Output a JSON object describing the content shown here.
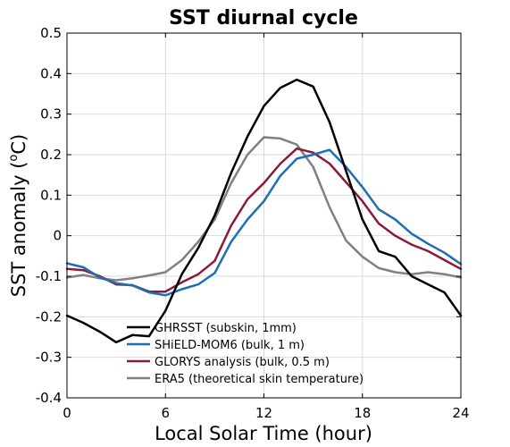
{
  "chart_data": {
    "type": "line",
    "title": "SST diurnal cycle",
    "xlabel": "Local Solar Time (hour)",
    "ylabel_main": "SST anomaly (",
    "ylabel_sup": "o",
    "ylabel_tail": "C)",
    "xlim": [
      0,
      24
    ],
    "ylim": [
      -0.4,
      0.5
    ],
    "xticks": [
      0,
      6,
      12,
      18,
      24
    ],
    "xtick_labels": [
      "0",
      "6",
      "12",
      "18",
      "24"
    ],
    "yticks": [
      -0.4,
      -0.3,
      -0.2,
      -0.1,
      0,
      0.1,
      0.2,
      0.3,
      0.4,
      0.5
    ],
    "ytick_labels": [
      "-0.4",
      "-0.3",
      "-0.2",
      "-0.1",
      "0",
      "0.1",
      "0.2",
      "0.3",
      "0.4",
      "0.5"
    ],
    "grid": true,
    "legend_position": "bottom-left",
    "x": [
      0,
      1,
      2,
      3,
      4,
      5,
      6,
      7,
      8,
      9,
      10,
      11,
      12,
      13,
      14,
      15,
      16,
      17,
      18,
      19,
      20,
      21,
      22,
      23,
      24
    ],
    "series": [
      {
        "name": "GHRSST (subskin, 1mm)",
        "color": "#000000",
        "values": [
          -0.197,
          -0.215,
          -0.237,
          -0.263,
          -0.245,
          -0.248,
          -0.185,
          -0.095,
          -0.03,
          0.05,
          0.155,
          0.245,
          0.32,
          0.365,
          0.385,
          0.368,
          0.28,
          0.16,
          0.04,
          -0.038,
          -0.052,
          -0.1,
          -0.12,
          -0.14,
          -0.197
        ]
      },
      {
        "name": "SHiELD-MOM6 (bulk, 1 m)",
        "color": "#1f6eb0",
        "values": [
          -0.068,
          -0.078,
          -0.103,
          -0.117,
          -0.123,
          -0.14,
          -0.147,
          -0.132,
          -0.12,
          -0.092,
          -0.015,
          0.04,
          0.085,
          0.148,
          0.19,
          0.2,
          0.212,
          0.17,
          0.12,
          0.065,
          0.04,
          0.005,
          -0.02,
          -0.042,
          -0.07
        ]
      },
      {
        "name": "GLORYS analysis (bulk, 0.5 m)",
        "color": "#8b1a3a",
        "values": [
          -0.082,
          -0.085,
          -0.1,
          -0.12,
          -0.122,
          -0.138,
          -0.138,
          -0.115,
          -0.095,
          -0.062,
          0.025,
          0.09,
          0.13,
          0.178,
          0.215,
          0.205,
          0.178,
          0.132,
          0.085,
          0.03,
          0.0,
          -0.022,
          -0.038,
          -0.06,
          -0.082
        ]
      },
      {
        "name": "ERA5 (theoretical skin temperature)",
        "color": "#808080",
        "values": [
          -0.103,
          -0.097,
          -0.105,
          -0.11,
          -0.105,
          -0.098,
          -0.09,
          -0.06,
          -0.015,
          0.04,
          0.13,
          0.2,
          0.243,
          0.24,
          0.225,
          0.17,
          0.07,
          -0.012,
          -0.052,
          -0.08,
          -0.09,
          -0.095,
          -0.09,
          -0.095,
          -0.103
        ]
      }
    ]
  }
}
